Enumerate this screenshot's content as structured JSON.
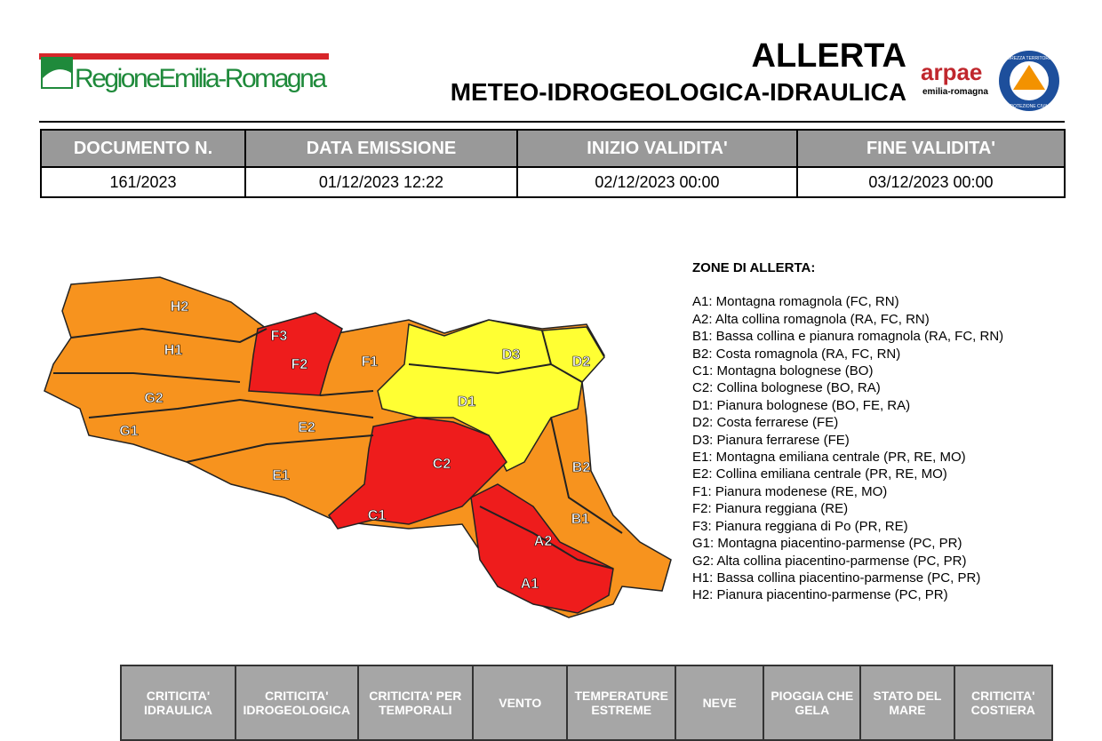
{
  "header": {
    "logo": "RegioneEmilia-Romagna",
    "title": "ALLERTA",
    "subtitle": "METEO-IDROGEOLOGICA-IDRAULICA",
    "arpae": "arpae",
    "arpae_sub": "emilia-romagna",
    "pc_top": "SICUREZZA TERRITORIALE",
    "pc_bottom": "PROTEZIONE CIVILE"
  },
  "info_table": {
    "headers": [
      "DOCUMENTO N.",
      "DATA EMISSIONE",
      "INIZIO VALIDITA'",
      "FINE VALIDITA'"
    ],
    "row": [
      "161/2023",
      "01/12/2023 12:22",
      "02/12/2023 00:00",
      "03/12/2023 00:00"
    ]
  },
  "map": {
    "zones": [
      {
        "label": "H2"
      },
      {
        "label": "H1"
      },
      {
        "label": "G2"
      },
      {
        "label": "G1"
      },
      {
        "label": "F3"
      },
      {
        "label": "F2"
      },
      {
        "label": "F1"
      },
      {
        "label": "E2"
      },
      {
        "label": "E1"
      },
      {
        "label": "D3"
      },
      {
        "label": "D2"
      },
      {
        "label": "D1"
      },
      {
        "label": "C2"
      },
      {
        "label": "C1"
      },
      {
        "label": "B2"
      },
      {
        "label": "B1"
      },
      {
        "label": "A2"
      },
      {
        "label": "A1"
      }
    ]
  },
  "legend": {
    "title": "ZONE DI ALLERTA:",
    "items": [
      "A1: Montagna romagnola (FC, RN)",
      "A2: Alta collina romagnola (RA, FC, RN)",
      "B1: Bassa collina e pianura romagnola (RA, FC, RN)",
      "B2: Costa romagnola (RA, FC, RN)",
      "C1: Montagna bolognese (BO)",
      "C2: Collina bolognese (BO, RA)",
      "D1: Pianura bolognese (BO, FE, RA)",
      "D2: Costa ferrarese (FE)",
      "D3: Pianura ferrarese (FE)",
      "E1: Montagna emiliana centrale (PR, RE, MO)",
      "E2: Collina emiliana centrale (PR, RE, MO)",
      "F1: Pianura modenese (RE, MO)",
      "F2: Pianura reggiana (RE)",
      "F3: Pianura reggiana di Po (PR, RE)",
      "G1: Montagna piacentino-parmense (PC, PR)",
      "G2: Alta collina piacentino-parmense (PC, PR)",
      "H1: Bassa collina piacentino-parmense (PC, PR)",
      "H2: Pianura piacentino-parmense (PC, PR)"
    ]
  },
  "bottom_table": {
    "headers": [
      "CRITICITA' IDRAULICA",
      "CRITICITA' IDROGEOLOGICA",
      "CRITICITA' PER TEMPORALI",
      "VENTO",
      "TEMPERATURE ESTREME",
      "NEVE",
      "PIOGGIA CHE GELA",
      "STATO DEL MARE",
      "CRITICITA' COSTIERA"
    ]
  }
}
